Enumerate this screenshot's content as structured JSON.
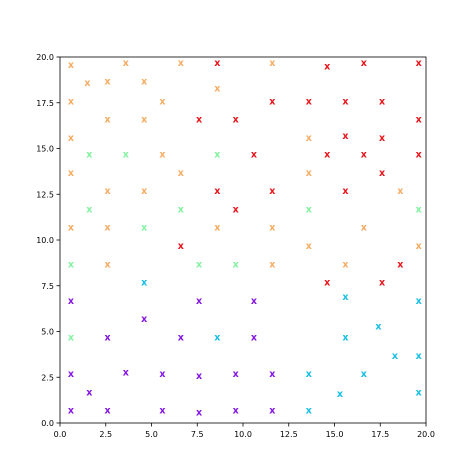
{
  "chart_data": {
    "type": "scatter",
    "title": "",
    "xlabel": "",
    "ylabel": "",
    "xlim": [
      0,
      20
    ],
    "ylim": [
      0,
      20
    ],
    "grid": false,
    "legend": "none",
    "marker": "x",
    "x_ticks": [
      0,
      2.5,
      5,
      7.5,
      10,
      12.5,
      15,
      17.5,
      20
    ],
    "y_ticks": [
      0,
      2.5,
      5,
      7.5,
      10,
      12.5,
      15,
      17.5,
      20
    ],
    "x_tick_labels": [
      "0.0",
      "2.5",
      "5.0",
      "7.5",
      "10.0",
      "12.5",
      "15.0",
      "17.5",
      "20.0"
    ],
    "y_tick_labels": [
      "0.0",
      "2.5",
      "5.0",
      "7.5",
      "10.0",
      "12.5",
      "15.0",
      "17.5",
      "20.0"
    ],
    "colors": {
      "red": "#e8151b",
      "orange": "#f7ac61",
      "green": "#82f2a0",
      "purple": "#8515e3",
      "cyan": "#16bfe5"
    },
    "points": [
      {
        "x": 0.6,
        "y": 19.6,
        "c": "orange"
      },
      {
        "x": 1.5,
        "y": 18.6,
        "c": "orange"
      },
      {
        "x": 2.6,
        "y": 18.7,
        "c": "orange"
      },
      {
        "x": 3.6,
        "y": 19.7,
        "c": "orange"
      },
      {
        "x": 4.6,
        "y": 18.7,
        "c": "orange"
      },
      {
        "x": 6.6,
        "y": 19.7,
        "c": "orange"
      },
      {
        "x": 8.6,
        "y": 19.7,
        "c": "red"
      },
      {
        "x": 8.6,
        "y": 18.3,
        "c": "orange"
      },
      {
        "x": 11.6,
        "y": 19.7,
        "c": "orange"
      },
      {
        "x": 14.6,
        "y": 19.5,
        "c": "red"
      },
      {
        "x": 16.6,
        "y": 19.7,
        "c": "red"
      },
      {
        "x": 19.6,
        "y": 19.7,
        "c": "red"
      },
      {
        "x": 0.6,
        "y": 17.6,
        "c": "orange"
      },
      {
        "x": 5.6,
        "y": 17.6,
        "c": "orange"
      },
      {
        "x": 11.6,
        "y": 17.6,
        "c": "red"
      },
      {
        "x": 13.6,
        "y": 17.6,
        "c": "red"
      },
      {
        "x": 15.6,
        "y": 17.6,
        "c": "red"
      },
      {
        "x": 17.6,
        "y": 17.6,
        "c": "red"
      },
      {
        "x": 2.6,
        "y": 16.6,
        "c": "orange"
      },
      {
        "x": 4.6,
        "y": 16.6,
        "c": "orange"
      },
      {
        "x": 7.6,
        "y": 16.6,
        "c": "red"
      },
      {
        "x": 9.6,
        "y": 16.6,
        "c": "red"
      },
      {
        "x": 19.6,
        "y": 16.6,
        "c": "red"
      },
      {
        "x": 0.6,
        "y": 15.6,
        "c": "orange"
      },
      {
        "x": 13.6,
        "y": 15.6,
        "c": "orange"
      },
      {
        "x": 15.6,
        "y": 15.7,
        "c": "red"
      },
      {
        "x": 17.6,
        "y": 15.6,
        "c": "red"
      },
      {
        "x": 1.6,
        "y": 14.7,
        "c": "green"
      },
      {
        "x": 3.6,
        "y": 14.7,
        "c": "green"
      },
      {
        "x": 5.6,
        "y": 14.7,
        "c": "orange"
      },
      {
        "x": 8.6,
        "y": 14.7,
        "c": "green"
      },
      {
        "x": 10.6,
        "y": 14.7,
        "c": "red"
      },
      {
        "x": 14.6,
        "y": 14.7,
        "c": "red"
      },
      {
        "x": 16.6,
        "y": 14.7,
        "c": "red"
      },
      {
        "x": 19.6,
        "y": 14.7,
        "c": "red"
      },
      {
        "x": 0.6,
        "y": 13.7,
        "c": "orange"
      },
      {
        "x": 6.6,
        "y": 13.7,
        "c": "orange"
      },
      {
        "x": 13.6,
        "y": 13.7,
        "c": "orange"
      },
      {
        "x": 17.6,
        "y": 13.7,
        "c": "red"
      },
      {
        "x": 2.6,
        "y": 12.7,
        "c": "orange"
      },
      {
        "x": 4.6,
        "y": 12.7,
        "c": "orange"
      },
      {
        "x": 8.6,
        "y": 12.7,
        "c": "red"
      },
      {
        "x": 11.6,
        "y": 12.7,
        "c": "red"
      },
      {
        "x": 15.6,
        "y": 12.7,
        "c": "red"
      },
      {
        "x": 18.6,
        "y": 12.7,
        "c": "orange"
      },
      {
        "x": 1.6,
        "y": 11.7,
        "c": "green"
      },
      {
        "x": 6.6,
        "y": 11.7,
        "c": "green"
      },
      {
        "x": 9.6,
        "y": 11.7,
        "c": "red"
      },
      {
        "x": 13.6,
        "y": 11.7,
        "c": "green"
      },
      {
        "x": 19.6,
        "y": 11.7,
        "c": "green"
      },
      {
        "x": 0.6,
        "y": 10.7,
        "c": "orange"
      },
      {
        "x": 2.6,
        "y": 10.7,
        "c": "orange"
      },
      {
        "x": 4.6,
        "y": 10.7,
        "c": "green"
      },
      {
        "x": 8.6,
        "y": 10.7,
        "c": "orange"
      },
      {
        "x": 11.6,
        "y": 10.7,
        "c": "orange"
      },
      {
        "x": 16.6,
        "y": 10.7,
        "c": "orange"
      },
      {
        "x": 6.6,
        "y": 9.7,
        "c": "red"
      },
      {
        "x": 13.6,
        "y": 9.7,
        "c": "orange"
      },
      {
        "x": 19.6,
        "y": 9.7,
        "c": "orange"
      },
      {
        "x": 0.6,
        "y": 8.7,
        "c": "green"
      },
      {
        "x": 2.6,
        "y": 8.7,
        "c": "orange"
      },
      {
        "x": 7.6,
        "y": 8.7,
        "c": "green"
      },
      {
        "x": 9.6,
        "y": 8.7,
        "c": "green"
      },
      {
        "x": 11.6,
        "y": 8.7,
        "c": "orange"
      },
      {
        "x": 15.6,
        "y": 8.7,
        "c": "orange"
      },
      {
        "x": 18.6,
        "y": 8.7,
        "c": "red"
      },
      {
        "x": 4.6,
        "y": 7.7,
        "c": "cyan"
      },
      {
        "x": 14.6,
        "y": 7.7,
        "c": "red"
      },
      {
        "x": 17.6,
        "y": 7.7,
        "c": "red"
      },
      {
        "x": 0.6,
        "y": 6.7,
        "c": "purple"
      },
      {
        "x": 7.6,
        "y": 6.7,
        "c": "purple"
      },
      {
        "x": 10.6,
        "y": 6.7,
        "c": "purple"
      },
      {
        "x": 15.6,
        "y": 6.9,
        "c": "cyan"
      },
      {
        "x": 19.6,
        "y": 6.7,
        "c": "cyan"
      },
      {
        "x": 4.6,
        "y": 5.7,
        "c": "purple"
      },
      {
        "x": 17.4,
        "y": 5.3,
        "c": "cyan"
      },
      {
        "x": 0.6,
        "y": 4.7,
        "c": "green"
      },
      {
        "x": 2.6,
        "y": 4.7,
        "c": "purple"
      },
      {
        "x": 6.6,
        "y": 4.7,
        "c": "purple"
      },
      {
        "x": 8.6,
        "y": 4.7,
        "c": "cyan"
      },
      {
        "x": 10.6,
        "y": 4.7,
        "c": "purple"
      },
      {
        "x": 15.6,
        "y": 4.7,
        "c": "cyan"
      },
      {
        "x": 18.3,
        "y": 3.7,
        "c": "cyan"
      },
      {
        "x": 19.6,
        "y": 3.7,
        "c": "cyan"
      },
      {
        "x": 0.6,
        "y": 2.7,
        "c": "purple"
      },
      {
        "x": 3.6,
        "y": 2.8,
        "c": "purple"
      },
      {
        "x": 5.6,
        "y": 2.7,
        "c": "purple"
      },
      {
        "x": 7.6,
        "y": 2.6,
        "c": "purple"
      },
      {
        "x": 9.6,
        "y": 2.7,
        "c": "purple"
      },
      {
        "x": 11.6,
        "y": 2.7,
        "c": "purple"
      },
      {
        "x": 13.6,
        "y": 2.7,
        "c": "cyan"
      },
      {
        "x": 16.6,
        "y": 2.7,
        "c": "cyan"
      },
      {
        "x": 1.6,
        "y": 1.7,
        "c": "purple"
      },
      {
        "x": 15.3,
        "y": 1.6,
        "c": "cyan"
      },
      {
        "x": 19.6,
        "y": 1.7,
        "c": "cyan"
      },
      {
        "x": 0.6,
        "y": 0.7,
        "c": "purple"
      },
      {
        "x": 2.6,
        "y": 0.7,
        "c": "purple"
      },
      {
        "x": 5.6,
        "y": 0.7,
        "c": "purple"
      },
      {
        "x": 7.6,
        "y": 0.6,
        "c": "purple"
      },
      {
        "x": 9.6,
        "y": 0.7,
        "c": "purple"
      },
      {
        "x": 11.6,
        "y": 0.7,
        "c": "purple"
      },
      {
        "x": 13.6,
        "y": 0.7,
        "c": "cyan"
      }
    ]
  }
}
